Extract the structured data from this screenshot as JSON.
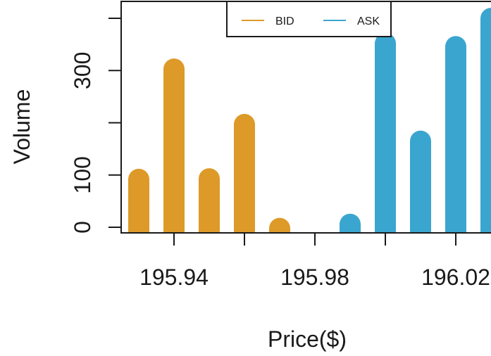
{
  "chart_data": {
    "type": "bar",
    "title": "",
    "xlabel": "Price($)",
    "ylabel": "Volume",
    "xlim": [
      195.925,
      196.03
    ],
    "ylim": [
      0,
      400
    ],
    "x_ticks": [
      195.94,
      195.98,
      196.02
    ],
    "x_tick_labels": [
      "195.94",
      "195.98",
      "196.02"
    ],
    "y_ticks": [
      0,
      100,
      200,
      300,
      400
    ],
    "y_tick_labels": [
      "0",
      "100",
      "",
      "300",
      ""
    ],
    "grid": false,
    "legend": {
      "placement": "top-center",
      "entries": [
        "BID",
        "ASK"
      ]
    },
    "series": [
      {
        "name": "BID",
        "color": "#dd9a28",
        "x": [
          195.93,
          195.94,
          195.95,
          195.96,
          195.97
        ],
        "values": [
          112,
          323,
          113,
          217,
          18
        ]
      },
      {
        "name": "ASK",
        "color": "#3aa6cf",
        "x": [
          195.99,
          196.0,
          196.01,
          196.02,
          196.03
        ],
        "values": [
          26,
          372,
          185,
          366,
          420
        ]
      }
    ]
  }
}
